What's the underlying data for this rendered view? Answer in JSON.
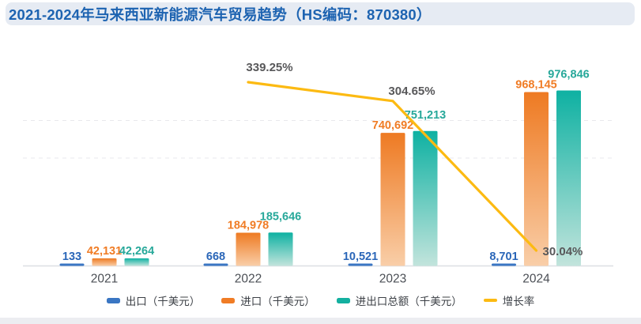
{
  "header": {
    "title": "2021-2024年马来西亚新能源汽车贸易趋势（HS编码：870380）",
    "title_color": "#1d63b1",
    "bar_color": "#e6ebf3"
  },
  "chart_data": {
    "type": "bar",
    "title": "2021-2024年马来西亚新能源汽车贸易趋势（HS编码：870380）",
    "categories": [
      "2021",
      "2022",
      "2023",
      "2024"
    ],
    "series": [
      {
        "key": "export",
        "name": "出口（千美元）",
        "type": "bar",
        "values": [
          133,
          668,
          10521,
          8701
        ],
        "labels": [
          "133",
          "668",
          "10,521",
          "8,701"
        ],
        "color": "#3a76c3",
        "label_color": "#2a66b8"
      },
      {
        "key": "import",
        "name": "进口（千美元）",
        "type": "bar",
        "values": [
          42131,
          184978,
          740692,
          968145
        ],
        "labels": [
          "42,131",
          "184,978",
          "740,692",
          "968,145"
        ],
        "gradient": [
          "#ee7a22",
          "#f9cea8"
        ],
        "color": "#f07c25",
        "label_color": "#f07c25"
      },
      {
        "key": "total",
        "name": "进出口总额（千美元）",
        "type": "bar",
        "values": [
          42264,
          185646,
          751213,
          976846
        ],
        "labels": [
          "42,264",
          "185,646",
          "751,213",
          "976,846"
        ],
        "gradient": [
          "#0eb1a2",
          "#c2e4dc"
        ],
        "color": "#14b0a0",
        "label_color": "#27a89a"
      },
      {
        "key": "growth-rate",
        "name": "增长率",
        "type": "line",
        "categories": [
          "2022",
          "2023",
          "2024"
        ],
        "values": [
          339.25,
          304.65,
          30.04
        ],
        "labels": [
          "339.25%",
          "304.65%",
          "30.04%"
        ],
        "color": "#fcba12",
        "label_color": "#58585a"
      }
    ],
    "legend_position": "bottom",
    "grid": "dashed-horizontal",
    "y_axis_visible": false,
    "x_axis_label_color": "#4b4f55",
    "ylim": [
      0,
      1040000
    ]
  }
}
